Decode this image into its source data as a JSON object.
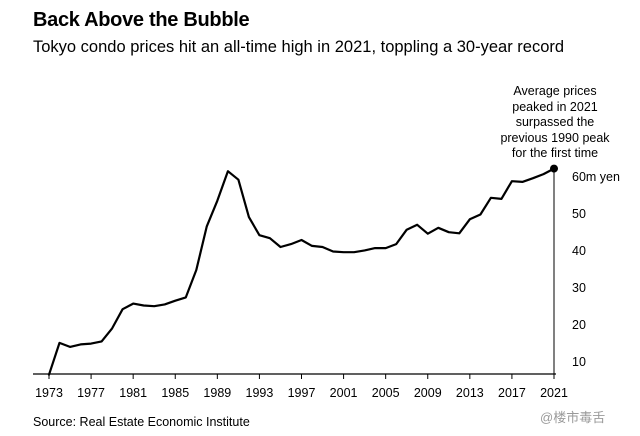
{
  "header": {
    "title": "Back Above the Bubble",
    "subtitle": "Tokyo condo prices hit an all-time high in 2021, toppling a 30-year record"
  },
  "annotation": {
    "text": "Average prices peaked in 2021 surpassed the previous 1990 peak for the first time"
  },
  "footer": {
    "source": "Source: Real Estate Economic Institute",
    "watermark": "@楼市毒舌"
  },
  "chart_data": {
    "type": "line",
    "title": "Back Above the Bubble",
    "subtitle": "Tokyo condo prices hit an all-time high in 2021, toppling a 30-year record",
    "xlabel": "",
    "ylabel": "",
    "x": [
      1973,
      1974,
      1975,
      1976,
      1977,
      1978,
      1979,
      1980,
      1981,
      1982,
      1983,
      1984,
      1985,
      1986,
      1987,
      1988,
      1989,
      1990,
      1991,
      1992,
      1993,
      1994,
      1995,
      1996,
      1997,
      1998,
      1999,
      2000,
      2001,
      2002,
      2003,
      2004,
      2005,
      2006,
      2007,
      2008,
      2009,
      2010,
      2011,
      2012,
      2013,
      2014,
      2015,
      2016,
      2017,
      2018,
      2019,
      2020,
      2021
    ],
    "series": [
      {
        "values": [
          6.3,
          14.9,
          13.8,
          14.5,
          14.7,
          15.3,
          18.8,
          24.0,
          25.5,
          25.0,
          24.8,
          25.3,
          26.3,
          27.2,
          34.6,
          46.4,
          53.3,
          61.3,
          59.0,
          48.9,
          44.0,
          43.2,
          40.8,
          41.6,
          42.7,
          41.1,
          40.8,
          39.6,
          39.4,
          39.4,
          39.9,
          40.5,
          40.5,
          41.6,
          45.5,
          46.8,
          44.4,
          46.0,
          44.8,
          44.5,
          48.3,
          49.6,
          54.1,
          53.8,
          58.6,
          58.4,
          59.4,
          60.5,
          62.0
        ]
      }
    ],
    "xticks": [
      1973,
      1977,
      1981,
      1985,
      1989,
      1993,
      1997,
      2001,
      2005,
      2009,
      2013,
      2017,
      2021
    ],
    "yticks": [
      10,
      20,
      30,
      40,
      50,
      60
    ],
    "ytick_labels": [
      "10",
      "20",
      "30",
      "40",
      "50",
      "60m yen"
    ],
    "xlim": [
      1973,
      2021
    ],
    "ylim": [
      6,
      62
    ],
    "highlight": {
      "x": 2021,
      "y": 62.0
    },
    "grid": false,
    "line_color": "#000000"
  }
}
